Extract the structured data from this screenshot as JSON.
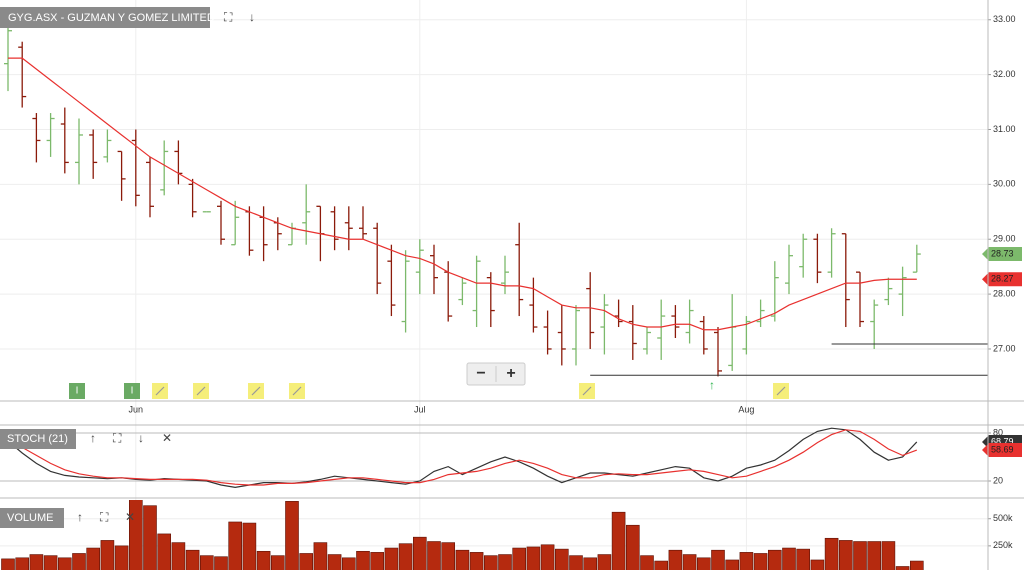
{
  "chart_data": [
    {
      "type": "ohlc",
      "title": "GYG.ASX - GUZMAN Y GOMEZ LIMITED",
      "event_label": "I",
      "categories": [
        null,
        null,
        null,
        null,
        null,
        null,
        null,
        null,
        null,
        "Jun",
        null,
        null,
        null,
        null,
        null,
        null,
        null,
        null,
        null,
        null,
        null,
        null,
        null,
        null,
        null,
        null,
        null,
        null,
        null,
        "Jul",
        null,
        null,
        null,
        null,
        null,
        null,
        null,
        null,
        null,
        null,
        null,
        null,
        null,
        null,
        null,
        null,
        null,
        null,
        null,
        null,
        null,
        null,
        "Aug",
        null,
        null,
        null,
        null,
        null,
        null,
        null,
        null,
        null,
        null,
        null,
        null
      ],
      "open": [
        32.2,
        32.5,
        31.2,
        30.8,
        31.1,
        30.4,
        30.9,
        30.5,
        30.6,
        30.8,
        30.4,
        29.9,
        30.6,
        30.0,
        29.5,
        29.6,
        28.9,
        29.5,
        29.4,
        29.3,
        28.9,
        29.3,
        29.6,
        29.5,
        29.3,
        29.2,
        29.2,
        28.6,
        27.5,
        28.4,
        28.7,
        28.4,
        27.9,
        27.7,
        28.3,
        28.2,
        28.9,
        27.8,
        27.4,
        27.3,
        27.0,
        28.1,
        27.4,
        27.6,
        27.5,
        27.0,
        27.2,
        27.6,
        27.3,
        27.5,
        27.3,
        26.7,
        27.0,
        27.5,
        27.6,
        28.2,
        28.5,
        29.0,
        28.4,
        29.1,
        28.4,
        27.5,
        27.9,
        28.0,
        28.4
      ],
      "high": [
        33.1,
        32.6,
        31.3,
        31.3,
        31.4,
        31.2,
        31.0,
        31.0,
        30.6,
        31.0,
        30.5,
        30.8,
        30.8,
        30.1,
        29.5,
        29.7,
        29.7,
        29.6,
        29.6,
        29.4,
        29.3,
        30.0,
        29.6,
        29.6,
        29.6,
        29.6,
        29.3,
        28.9,
        28.8,
        29.0,
        28.9,
        28.6,
        28.3,
        28.7,
        28.4,
        28.7,
        29.3,
        28.3,
        27.7,
        27.8,
        27.8,
        28.4,
        28.0,
        27.9,
        27.8,
        27.4,
        27.9,
        27.8,
        27.9,
        27.6,
        27.4,
        28.0,
        27.6,
        27.9,
        28.6,
        28.9,
        29.1,
        29.1,
        29.2,
        29.1,
        28.4,
        27.9,
        28.3,
        28.5,
        28.9
      ],
      "low": [
        31.7,
        31.4,
        30.4,
        30.5,
        30.2,
        30.0,
        30.1,
        30.4,
        29.7,
        29.6,
        29.4,
        29.8,
        30.0,
        29.4,
        29.5,
        28.9,
        28.9,
        28.7,
        28.6,
        28.8,
        28.9,
        28.9,
        28.6,
        28.8,
        28.8,
        29.0,
        28.0,
        27.6,
        27.3,
        28.0,
        28.0,
        27.5,
        27.8,
        27.4,
        27.4,
        28.0,
        27.6,
        27.3,
        26.9,
        26.7,
        26.7,
        27.0,
        26.9,
        27.4,
        26.8,
        26.9,
        26.8,
        27.2,
        27.1,
        26.9,
        26.5,
        26.6,
        26.9,
        27.4,
        27.5,
        28.0,
        28.3,
        28.2,
        28.3,
        27.4,
        27.4,
        27.0,
        27.8,
        27.6,
        28.4
      ],
      "close": [
        32.8,
        31.6,
        30.8,
        31.2,
        30.4,
        30.9,
        30.4,
        30.8,
        30.1,
        29.8,
        29.6,
        30.6,
        30.2,
        29.5,
        29.5,
        29.0,
        29.4,
        28.8,
        28.9,
        29.1,
        29.2,
        29.5,
        29.1,
        29.0,
        29.2,
        29.1,
        28.2,
        27.8,
        28.6,
        28.8,
        28.3,
        27.6,
        28.2,
        28.6,
        27.7,
        28.4,
        27.9,
        27.4,
        27.0,
        27.0,
        27.7,
        27.3,
        27.8,
        27.5,
        27.1,
        27.3,
        27.6,
        27.4,
        27.7,
        27.0,
        26.6,
        27.4,
        27.5,
        27.7,
        28.3,
        28.7,
        29.0,
        28.4,
        29.1,
        27.9,
        27.5,
        27.8,
        28.1,
        28.3,
        28.73
      ],
      "up_color": "#7cb96b",
      "down_color": "#8b1a0a",
      "overlay": {
        "color": "#e8312f",
        "values": [
          32.3,
          32.3,
          32.1,
          31.9,
          31.7,
          31.5,
          31.3,
          31.1,
          30.9,
          30.7,
          30.5,
          30.35,
          30.2,
          30.05,
          29.9,
          29.75,
          29.6,
          29.5,
          29.4,
          29.3,
          29.2,
          29.15,
          29.1,
          29.05,
          29.0,
          29.0,
          28.9,
          28.8,
          28.7,
          28.65,
          28.55,
          28.4,
          28.3,
          28.2,
          28.2,
          28.15,
          28.15,
          28.1,
          27.95,
          27.8,
          27.75,
          27.75,
          27.7,
          27.55,
          27.45,
          27.4,
          27.4,
          27.45,
          27.45,
          27.35,
          27.35,
          27.4,
          27.45,
          27.55,
          27.65,
          27.8,
          27.9,
          28.0,
          28.1,
          28.2,
          28.2,
          28.25,
          28.27,
          28.27,
          28.27
        ]
      },
      "levels": [
        {
          "value": 26.52,
          "from": 41
        },
        {
          "value": 27.09,
          "from": 58
        }
      ],
      "ylim": [
        26.07,
        33.36
      ],
      "yticks": [
        {
          "value": 27,
          "label": "27.00"
        },
        {
          "value": 28,
          "label": "28.00"
        },
        {
          "value": 29,
          "label": "29.00"
        },
        {
          "value": 30,
          "label": "30.00"
        },
        {
          "value": 31,
          "label": "31.00"
        },
        {
          "value": 32,
          "label": "32.00"
        },
        {
          "value": 33,
          "label": "33.00"
        }
      ],
      "grid": true
    },
    {
      "type": "line",
      "title": "STOCH (21)",
      "series": [
        {
          "color": "#333333",
          "values": [
            70,
            55,
            42,
            32,
            27,
            25,
            24,
            23,
            24,
            22,
            21,
            23,
            22,
            21,
            20,
            15,
            12,
            15,
            18,
            18,
            17,
            19,
            22,
            26,
            24,
            22,
            20,
            18,
            16,
            20,
            32,
            38,
            28,
            36,
            44,
            50,
            44,
            36,
            26,
            18,
            24,
            30,
            30,
            28,
            26,
            30,
            34,
            38,
            36,
            24,
            20,
            26,
            36,
            40,
            46,
            58,
            72,
            82,
            86,
            84,
            72,
            56,
            46,
            50,
            68.79
          ]
        },
        {
          "color": "#e8312f",
          "values": [
            68,
            62,
            52,
            42,
            34,
            29,
            26,
            24,
            24,
            23,
            22,
            22,
            22,
            22,
            21,
            18,
            16,
            15,
            15,
            17,
            17,
            18,
            20,
            22,
            24,
            24,
            22,
            20,
            18,
            18,
            22,
            28,
            30,
            32,
            36,
            42,
            46,
            42,
            36,
            28,
            24,
            24,
            28,
            29,
            28,
            28,
            30,
            32,
            34,
            32,
            28,
            24,
            26,
            32,
            38,
            46,
            56,
            68,
            78,
            84,
            82,
            72,
            60,
            52,
            58.69
          ]
        }
      ],
      "ylim": [
        0,
        100
      ],
      "yticks": [
        20,
        80
      ]
    },
    {
      "type": "bar",
      "title": "VOLUME",
      "color": "#b52a0f",
      "values": [
        130000,
        140000,
        170000,
        160000,
        140000,
        180000,
        230000,
        300000,
        250000,
        700000,
        620000,
        360000,
        280000,
        210000,
        160000,
        150000,
        470000,
        460000,
        200000,
        160000,
        660000,
        180000,
        280000,
        170000,
        140000,
        200000,
        190000,
        230000,
        270000,
        330000,
        290000,
        280000,
        210000,
        190000,
        160000,
        170000,
        230000,
        240000,
        260000,
        220000,
        160000,
        140000,
        170000,
        560000,
        440000,
        160000,
        110000,
        210000,
        170000,
        140000,
        210000,
        120000,
        190000,
        180000,
        210000,
        230000,
        220000,
        120000,
        320000,
        300000,
        290000,
        290000,
        290000,
        60000,
        110000
      ],
      "ylim": [
        0,
        700000
      ],
      "yticks": [
        {
          "value": 250000,
          "label": "250k"
        },
        {
          "value": 500000,
          "label": "500k"
        }
      ]
    }
  ]
}
